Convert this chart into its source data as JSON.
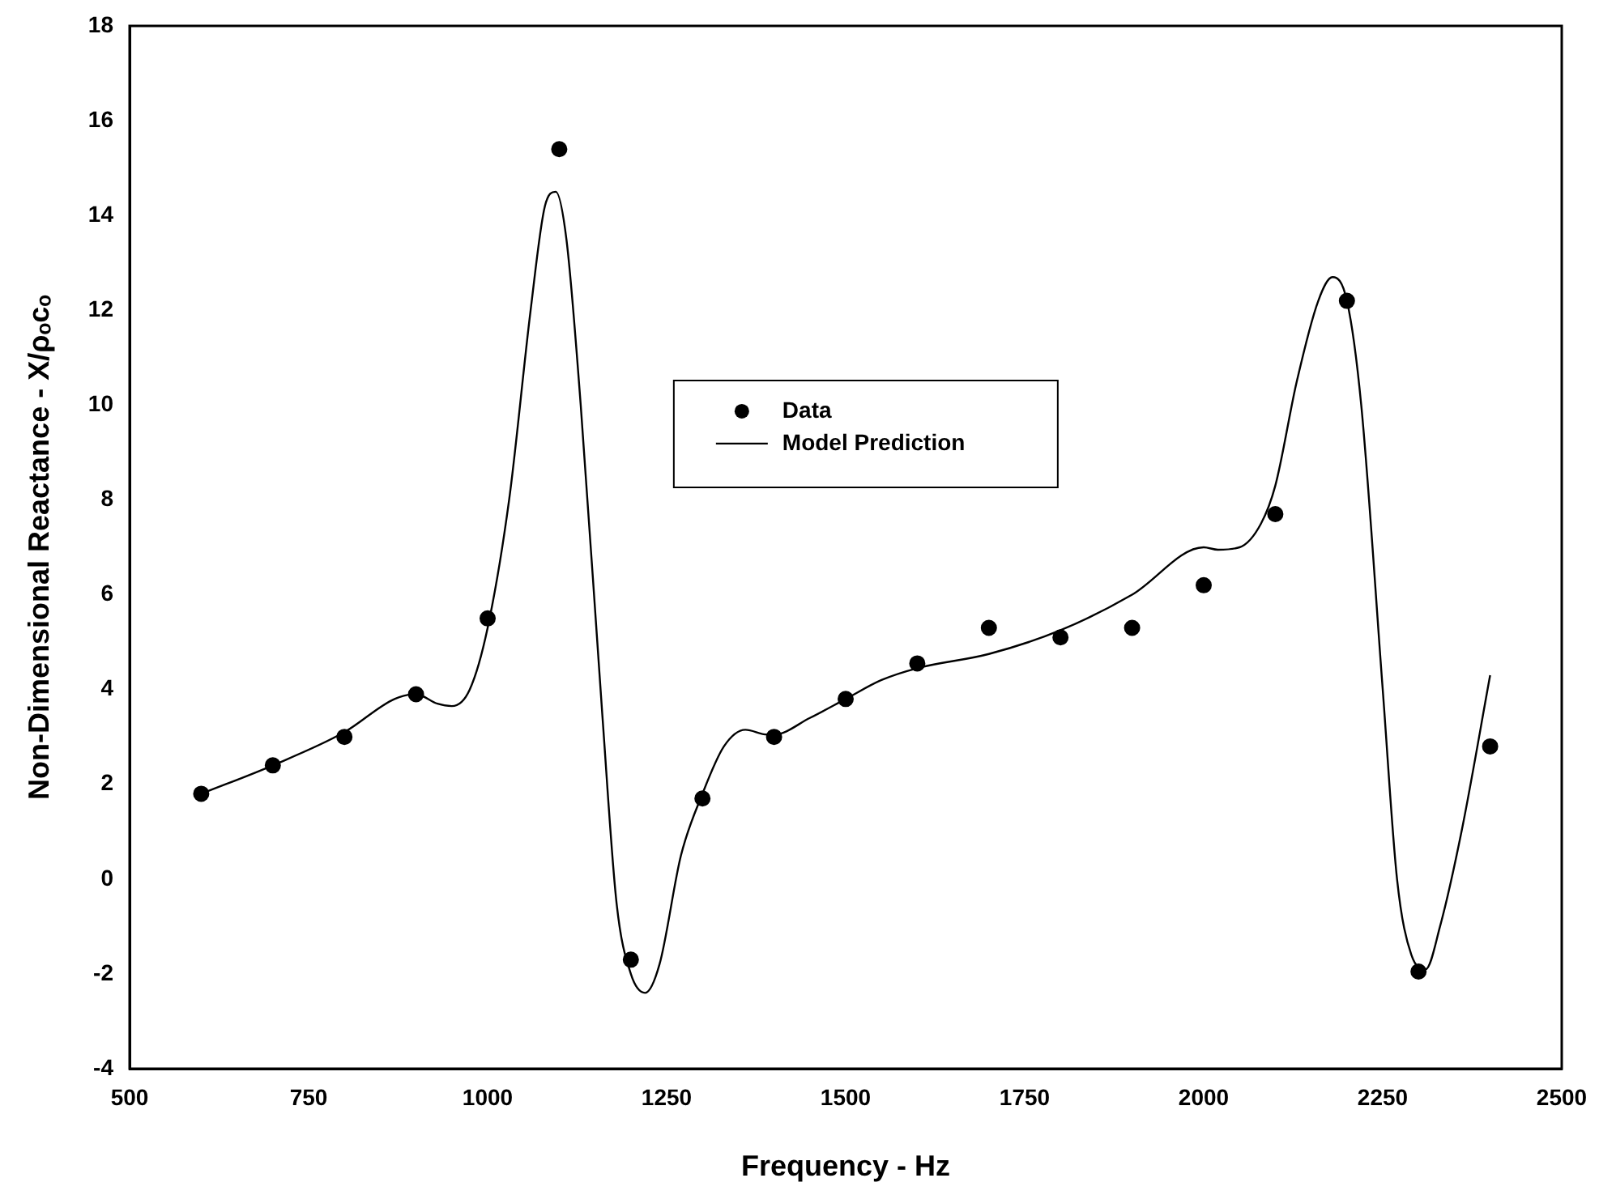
{
  "chart_data": {
    "type": "scatter",
    "xlabel": "Frequency - Hz",
    "ylabel": "Non-Dimensional Reactance - X/ρₒcₒ",
    "xlim": [
      500,
      2500
    ],
    "xticks": [
      500,
      750,
      1000,
      1250,
      1500,
      1750,
      2000,
      2250,
      2500
    ],
    "ylim": [
      -4,
      18
    ],
    "yticks": [
      -4,
      -2,
      0,
      2,
      4,
      6,
      8,
      10,
      12,
      14,
      16,
      18
    ],
    "grid": false,
    "legend": "center",
    "series": [
      {
        "name": "Data",
        "type": "scatter",
        "marker": "circle",
        "color": "#000000",
        "x": [
          600,
          700,
          800,
          900,
          1000,
          1100,
          1200,
          1300,
          1400,
          1500,
          1600,
          1700,
          1800,
          1900,
          2000,
          2100,
          2200,
          2300,
          2400
        ],
        "values": [
          1.8,
          2.4,
          3.0,
          3.9,
          5.5,
          15.4,
          -1.7,
          1.7,
          3.0,
          3.8,
          4.55,
          5.3,
          5.1,
          5.3,
          6.2,
          7.7,
          12.2,
          -1.95,
          2.8
        ]
      },
      {
        "name": "Model Prediction",
        "type": "line",
        "marker": "none",
        "line_style": "solid",
        "color": "#000000",
        "x": [
          600,
          700,
          800,
          870,
          900,
          930,
          950,
          975,
          1000,
          1030,
          1060,
          1080,
          1095,
          1110,
          1130,
          1160,
          1180,
          1200,
          1220,
          1240,
          1270,
          1300,
          1330,
          1360,
          1390,
          1400,
          1450,
          1500,
          1550,
          1600,
          1700,
          1800,
          1900,
          2000,
          2020,
          2050,
          2080,
          2100,
          2130,
          2160,
          2180,
          2200,
          2220,
          2250,
          2270,
          2290,
          2310,
          2330,
          2360,
          2400
        ],
        "values": [
          1.8,
          2.4,
          3.1,
          3.8,
          3.9,
          3.7,
          3.65,
          4.0,
          5.3,
          8.0,
          12.0,
          14.2,
          14.5,
          13.5,
          10.0,
          3.5,
          -0.5,
          -2.0,
          -2.4,
          -1.8,
          0.5,
          1.8,
          2.8,
          3.15,
          3.05,
          3.05,
          3.4,
          3.8,
          4.2,
          4.45,
          4.75,
          5.25,
          6.0,
          7.0,
          6.95,
          7.0,
          7.5,
          8.3,
          10.5,
          12.2,
          12.7,
          12.2,
          10.0,
          4.0,
          0.0,
          -1.6,
          -1.9,
          -1.0,
          1.0,
          4.3
        ]
      }
    ]
  }
}
